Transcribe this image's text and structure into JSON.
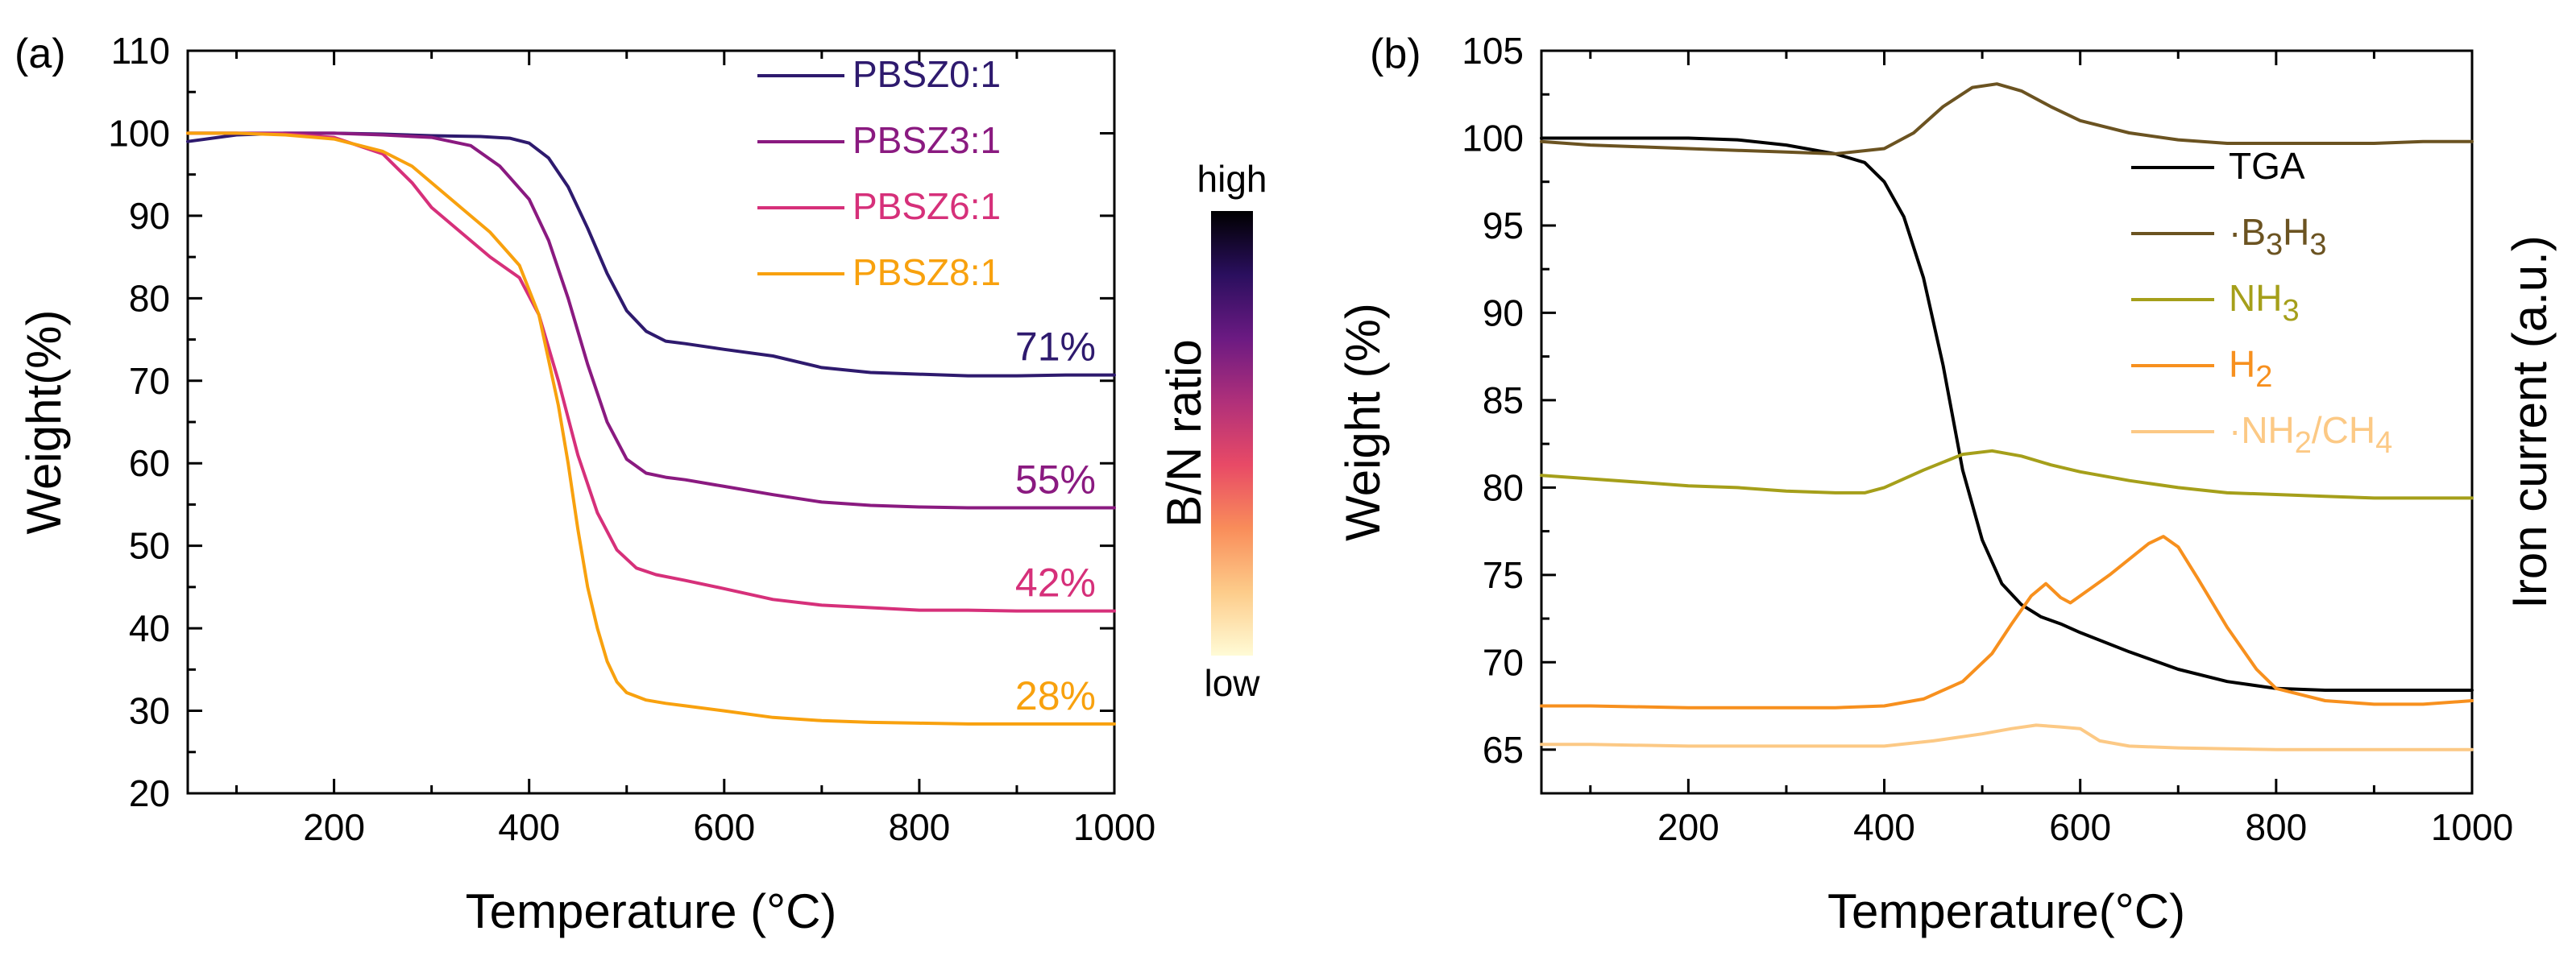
{
  "chart_data": [
    {
      "panel_label": "(a)",
      "type": "line",
      "xlabel": "Temperature (°C)",
      "ylabel": "Weight(%)",
      "xlim": [
        50,
        1000
      ],
      "ylim": [
        20,
        110
      ],
      "xticks": [
        200,
        400,
        600,
        800,
        1000
      ],
      "yticks": [
        20,
        30,
        40,
        50,
        60,
        70,
        80,
        90,
        100,
        110
      ],
      "legend_position": "top-right",
      "series": [
        {
          "name": "PBSZ0:1",
          "color": "#2e1a6e",
          "end_label": "71%",
          "x": [
            50,
            100,
            150,
            200,
            250,
            300,
            350,
            380,
            400,
            420,
            440,
            460,
            480,
            500,
            520,
            540,
            560,
            600,
            650,
            700,
            750,
            800,
            850,
            900,
            950,
            1000
          ],
          "y": [
            99.0,
            99.8,
            100.0,
            100.0,
            99.9,
            99.7,
            99.6,
            99.4,
            98.8,
            97.0,
            93.5,
            88.5,
            83.0,
            78.5,
            76.0,
            74.8,
            74.5,
            73.8,
            73.0,
            71.6,
            71.0,
            70.8,
            70.6,
            70.6,
            70.7,
            70.7
          ]
        },
        {
          "name": "PBSZ3:1",
          "color": "#8a1a80",
          "end_label": "55%",
          "x": [
            50,
            100,
            150,
            200,
            250,
            300,
            340,
            370,
            400,
            420,
            440,
            460,
            480,
            500,
            520,
            540,
            560,
            600,
            650,
            700,
            750,
            800,
            850,
            900,
            950,
            1000
          ],
          "y": [
            100.0,
            100.0,
            100.0,
            100.0,
            99.8,
            99.5,
            98.5,
            96.0,
            92.0,
            87.0,
            80.0,
            72.0,
            65.0,
            60.5,
            58.8,
            58.3,
            58.0,
            57.2,
            56.2,
            55.3,
            54.9,
            54.7,
            54.6,
            54.6,
            54.6,
            54.6
          ]
        },
        {
          "name": "PBSZ6:1",
          "color": "#d6307a",
          "end_label": "42%",
          "x": [
            50,
            100,
            150,
            200,
            250,
            280,
            300,
            330,
            360,
            390,
            410,
            430,
            450,
            470,
            490,
            510,
            530,
            560,
            600,
            650,
            700,
            750,
            800,
            850,
            900,
            950,
            1000
          ],
          "y": [
            100.0,
            100.0,
            99.9,
            99.5,
            97.5,
            94.0,
            91.0,
            88.0,
            85.0,
            82.5,
            78.0,
            70.0,
            61.0,
            54.0,
            49.5,
            47.3,
            46.5,
            45.8,
            44.8,
            43.5,
            42.8,
            42.5,
            42.2,
            42.2,
            42.1,
            42.1,
            42.1
          ]
        },
        {
          "name": "PBSZ8:1",
          "color": "#f8a10e",
          "end_label": "28%",
          "x": [
            50,
            100,
            150,
            200,
            250,
            280,
            300,
            330,
            360,
            390,
            410,
            430,
            440,
            450,
            460,
            470,
            480,
            490,
            500,
            520,
            540,
            560,
            600,
            650,
            700,
            750,
            800,
            850,
            900,
            950,
            1000
          ],
          "y": [
            100.0,
            100.0,
            99.8,
            99.3,
            97.8,
            96.0,
            94.0,
            91.0,
            88.0,
            84.0,
            78.0,
            67.0,
            60.0,
            52.0,
            45.0,
            40.0,
            36.0,
            33.5,
            32.2,
            31.3,
            30.9,
            30.6,
            30.0,
            29.2,
            28.8,
            28.6,
            28.5,
            28.4,
            28.4,
            28.4,
            28.4
          ]
        }
      ],
      "colorbar": {
        "title": "B/N ratio",
        "top_label": "high",
        "bottom_label": "low",
        "colors": [
          "#000000",
          "#2a0f5e",
          "#6b1a82",
          "#b0307a",
          "#e84a66",
          "#f98d5a",
          "#fdcc8a",
          "#fffbd6"
        ]
      }
    },
    {
      "panel_label": "(b)",
      "type": "line",
      "xlabel": "Temperature(°C)",
      "ylabel": "Weight (%)",
      "ylabel_right": "Iron current (a.u.)",
      "xlim": [
        50,
        1000
      ],
      "ylim": [
        62.5,
        105
      ],
      "xticks": [
        200,
        400,
        600,
        800,
        1000
      ],
      "yticks": [
        65,
        70,
        75,
        80,
        85,
        90,
        95,
        100,
        105
      ],
      "legend_position": "upper-middle",
      "series": [
        {
          "name": "TGA",
          "label_main": "TGA",
          "label_sub": "",
          "label_tail": "",
          "label_sub2": "",
          "color": "#000000",
          "x": [
            50,
            100,
            150,
            200,
            250,
            300,
            350,
            380,
            400,
            420,
            440,
            460,
            480,
            500,
            520,
            540,
            560,
            580,
            600,
            650,
            700,
            750,
            800,
            850,
            900,
            950,
            1000
          ],
          "y": [
            100.0,
            100.0,
            100.0,
            100.0,
            99.9,
            99.6,
            99.1,
            98.6,
            97.5,
            95.5,
            92.0,
            87.0,
            81.0,
            77.0,
            74.5,
            73.3,
            72.6,
            72.2,
            71.7,
            70.6,
            69.6,
            68.9,
            68.5,
            68.4,
            68.4,
            68.4,
            68.4
          ]
        },
        {
          "name": "·B3H3",
          "label_main": "·B",
          "label_sub": "3",
          "label_tail": "H",
          "label_sub2": "3",
          "color": "#6b5321",
          "x": [
            50,
            100,
            150,
            200,
            250,
            300,
            350,
            400,
            430,
            460,
            490,
            515,
            540,
            570,
            600,
            650,
            700,
            750,
            800,
            850,
            900,
            950,
            1000
          ],
          "y": [
            99.8,
            99.6,
            99.5,
            99.4,
            99.3,
            99.2,
            99.1,
            99.4,
            100.3,
            101.8,
            102.9,
            103.1,
            102.7,
            101.8,
            101.0,
            100.3,
            99.9,
            99.7,
            99.7,
            99.7,
            99.7,
            99.8,
            99.8
          ]
        },
        {
          "name": "NH3",
          "label_main": "NH",
          "label_sub": "3",
          "label_tail": "",
          "label_sub2": "",
          "color": "#a59f1a",
          "x": [
            50,
            100,
            150,
            200,
            250,
            300,
            350,
            380,
            400,
            440,
            480,
            510,
            540,
            570,
            600,
            650,
            700,
            750,
            800,
            850,
            900,
            950,
            1000
          ],
          "y": [
            80.7,
            80.5,
            80.3,
            80.1,
            80.0,
            79.8,
            79.7,
            79.7,
            80.0,
            81.0,
            81.9,
            82.1,
            81.8,
            81.3,
            80.9,
            80.4,
            80.0,
            79.7,
            79.6,
            79.5,
            79.4,
            79.4,
            79.4
          ]
        },
        {
          "name": "H2",
          "label_main": "H",
          "label_sub": "2",
          "label_tail": "",
          "label_sub2": "",
          "color": "#f7901e",
          "x": [
            50,
            100,
            200,
            300,
            350,
            400,
            440,
            480,
            510,
            530,
            550,
            565,
            580,
            590,
            610,
            630,
            650,
            670,
            685,
            700,
            720,
            750,
            780,
            800,
            850,
            900,
            950,
            1000
          ],
          "y": [
            67.5,
            67.5,
            67.4,
            67.4,
            67.4,
            67.5,
            67.9,
            68.9,
            70.5,
            72.2,
            73.8,
            74.5,
            73.7,
            73.4,
            74.2,
            75.0,
            75.9,
            76.8,
            77.2,
            76.6,
            74.8,
            72.0,
            69.6,
            68.5,
            67.8,
            67.6,
            67.6,
            67.8
          ]
        },
        {
          "name": "·NH2/CH4",
          "label_main": "·NH",
          "label_sub": "2",
          "label_tail": "/CH",
          "label_sub2": "4",
          "color": "#fcc985",
          "x": [
            50,
            100,
            200,
            300,
            400,
            450,
            500,
            530,
            555,
            580,
            600,
            620,
            650,
            700,
            800,
            900,
            1000
          ],
          "y": [
            65.3,
            65.3,
            65.2,
            65.2,
            65.2,
            65.5,
            65.9,
            66.2,
            66.4,
            66.3,
            66.2,
            65.5,
            65.2,
            65.1,
            65.0,
            65.0,
            65.0
          ]
        }
      ]
    }
  ]
}
